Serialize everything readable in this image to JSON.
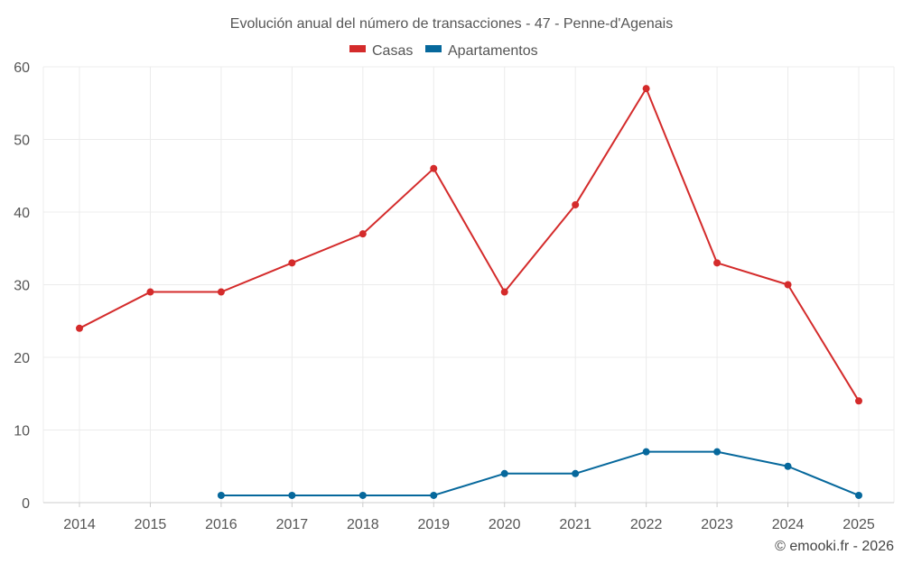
{
  "chart_data": {
    "type": "line",
    "title": "Evolución anual del número de transacciones - 47 - Penne-d'Agenais",
    "categories": [
      "2014",
      "2015",
      "2016",
      "2017",
      "2018",
      "2019",
      "2020",
      "2021",
      "2022",
      "2023",
      "2024",
      "2025"
    ],
    "series": [
      {
        "name": "Casas",
        "color": "#d42b2b",
        "values": [
          24,
          29,
          29,
          33,
          37,
          46,
          29,
          41,
          57,
          33,
          30,
          14
        ]
      },
      {
        "name": "Apartamentos",
        "color": "#06689c",
        "values": [
          null,
          null,
          1,
          1,
          1,
          1,
          4,
          4,
          7,
          7,
          5,
          1
        ]
      }
    ],
    "ylim": [
      0,
      60
    ],
    "yticks": [
      0,
      10,
      20,
      30,
      40,
      50,
      60
    ],
    "xlabel": "",
    "ylabel": "",
    "grid": true,
    "legend_position": "top-center"
  },
  "credit": "© emooki.fr - 2026"
}
